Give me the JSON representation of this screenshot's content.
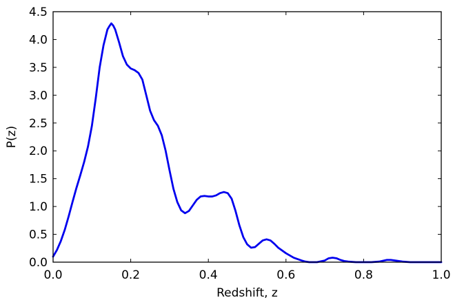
{
  "chart_data": {
    "type": "line",
    "title": "",
    "xlabel": "Redshift, z",
    "ylabel": "P(z)",
    "xlim": [
      0.0,
      1.0
    ],
    "ylim": [
      0.0,
      4.5
    ],
    "grid": false,
    "legend": "none",
    "xticks": [
      "0.0",
      "0.2",
      "0.4",
      "0.6",
      "0.8",
      "1.0"
    ],
    "yticks": [
      "0.0",
      "0.5",
      "1.0",
      "1.5",
      "2.0",
      "2.5",
      "3.0",
      "3.5",
      "4.0",
      "4.5"
    ],
    "series": [
      {
        "color": "#0000ee",
        "x": [
          0.0,
          0.01,
          0.02,
          0.03,
          0.04,
          0.05,
          0.06,
          0.07,
          0.08,
          0.09,
          0.1,
          0.11,
          0.12,
          0.13,
          0.14,
          0.145,
          0.15,
          0.155,
          0.16,
          0.17,
          0.18,
          0.19,
          0.2,
          0.21,
          0.22,
          0.23,
          0.24,
          0.25,
          0.26,
          0.27,
          0.28,
          0.29,
          0.3,
          0.31,
          0.32,
          0.33,
          0.34,
          0.35,
          0.36,
          0.37,
          0.38,
          0.39,
          0.4,
          0.41,
          0.42,
          0.43,
          0.44,
          0.45,
          0.46,
          0.47,
          0.48,
          0.49,
          0.5,
          0.51,
          0.52,
          0.53,
          0.54,
          0.55,
          0.56,
          0.57,
          0.58,
          0.6,
          0.62,
          0.64,
          0.65,
          0.66,
          0.68,
          0.7,
          0.71,
          0.72,
          0.73,
          0.74,
          0.75,
          0.76,
          0.78,
          0.8,
          0.82,
          0.84,
          0.86,
          0.87,
          0.88,
          0.9,
          0.92,
          0.95,
          1.0
        ],
        "y": [
          0.1,
          0.22,
          0.38,
          0.58,
          0.82,
          1.08,
          1.33,
          1.56,
          1.8,
          2.08,
          2.45,
          2.95,
          3.5,
          3.9,
          4.18,
          4.24,
          4.29,
          4.25,
          4.18,
          3.95,
          3.7,
          3.55,
          3.48,
          3.45,
          3.4,
          3.28,
          3.0,
          2.72,
          2.55,
          2.45,
          2.28,
          2.0,
          1.65,
          1.32,
          1.08,
          0.93,
          0.88,
          0.92,
          1.02,
          1.12,
          1.18,
          1.19,
          1.18,
          1.18,
          1.2,
          1.24,
          1.26,
          1.24,
          1.14,
          0.92,
          0.66,
          0.45,
          0.32,
          0.26,
          0.27,
          0.33,
          0.39,
          0.41,
          0.39,
          0.33,
          0.26,
          0.16,
          0.08,
          0.03,
          0.01,
          0.0,
          0.0,
          0.03,
          0.07,
          0.08,
          0.07,
          0.04,
          0.02,
          0.01,
          0.0,
          0.0,
          0.0,
          0.01,
          0.04,
          0.04,
          0.03,
          0.01,
          0.0,
          0.0,
          0.0
        ]
      }
    ]
  }
}
